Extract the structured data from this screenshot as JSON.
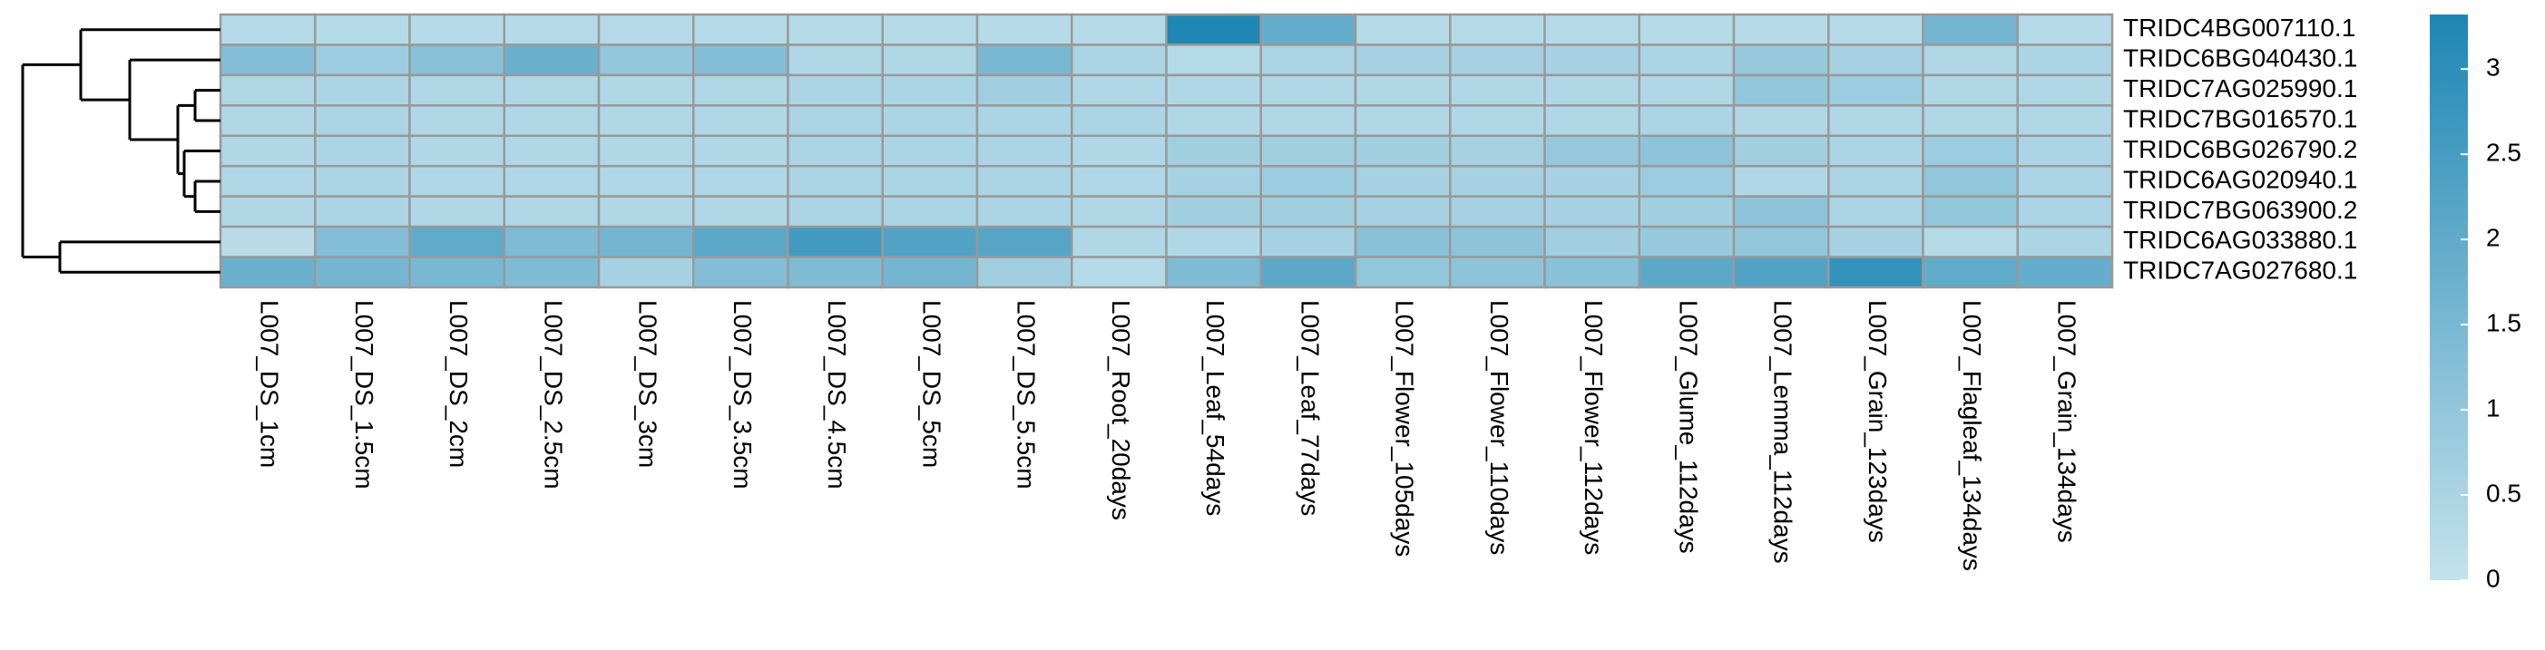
{
  "chart_data": {
    "type": "heatmap",
    "categories": [
      "L007_DS_1cm",
      "L007_DS_1.5cm",
      "L007_DS_2cm",
      "L007_DS_2.5cm",
      "L007_DS_3cm",
      "L007_DS_3.5cm",
      "L007_DS_4.5cm",
      "L007_DS_5cm",
      "L007_DS_5.5cm",
      "L007_Root_20days",
      "L007_Leaf_54days",
      "L007_Leaf_77days",
      "L007_Flower_105days",
      "L007_Flower_110days",
      "L007_Flower_112days",
      "L007_Glume_112days",
      "L007_Lemma_112days",
      "L007_Grain_123days",
      "L007_Flagleaf_134days",
      "L007_Grain_134days"
    ],
    "rows": [
      "TRIDC4BG007110.1",
      "TRIDC6BG040430.1",
      "TRIDC7AG025990.1",
      "TRIDC7BG016570.1",
      "TRIDC6BG026790.2",
      "TRIDC6AG020940.1",
      "TRIDC7BG063900.2",
      "TRIDC6AG033880.1",
      "TRIDC7AG027680.1"
    ],
    "values": [
      [
        0.3,
        0.3,
        0.3,
        0.3,
        0.3,
        0.3,
        0.3,
        0.3,
        0.3,
        0.3,
        3.3,
        1.9,
        0.3,
        0.3,
        0.3,
        0.3,
        0.3,
        0.3,
        1.6,
        0.3
      ],
      [
        1.3,
        0.8,
        1.2,
        1.8,
        1.0,
        1.3,
        0.4,
        0.4,
        1.5,
        0.5,
        0.3,
        0.5,
        0.6,
        0.6,
        0.6,
        0.5,
        0.9,
        0.6,
        0.4,
        0.5
      ],
      [
        0.4,
        0.5,
        0.4,
        0.4,
        0.4,
        0.4,
        0.5,
        0.5,
        0.7,
        0.4,
        0.4,
        0.4,
        0.4,
        0.4,
        0.4,
        0.4,
        1.0,
        0.8,
        0.4,
        0.4
      ],
      [
        0.4,
        0.5,
        0.4,
        0.4,
        0.4,
        0.4,
        0.5,
        0.5,
        0.5,
        0.5,
        0.4,
        0.4,
        0.4,
        0.4,
        0.4,
        0.5,
        0.4,
        0.4,
        0.4,
        0.4
      ],
      [
        0.4,
        0.5,
        0.4,
        0.4,
        0.4,
        0.4,
        0.5,
        0.5,
        0.5,
        0.4,
        0.7,
        0.7,
        0.7,
        0.6,
        0.9,
        1.1,
        0.7,
        0.5,
        0.8,
        0.5
      ],
      [
        0.4,
        0.5,
        0.4,
        0.4,
        0.4,
        0.4,
        0.5,
        0.5,
        0.5,
        0.4,
        0.6,
        0.8,
        0.6,
        0.6,
        0.6,
        0.8,
        0.4,
        0.5,
        1.0,
        0.5
      ],
      [
        0.4,
        0.5,
        0.4,
        0.4,
        0.4,
        0.4,
        0.5,
        0.5,
        0.5,
        0.4,
        0.7,
        0.7,
        0.6,
        0.6,
        0.6,
        0.7,
        1.1,
        0.5,
        1.0,
        0.5
      ],
      [
        0.2,
        1.3,
        2.0,
        1.4,
        1.6,
        2.1,
        2.6,
        2.3,
        2.2,
        0.4,
        0.4,
        0.6,
        1.2,
        1.1,
        0.7,
        0.9,
        1.0,
        0.6,
        0.3,
        0.5
      ],
      [
        1.8,
        1.6,
        1.5,
        1.4,
        0.6,
        1.3,
        1.4,
        1.6,
        0.7,
        0.3,
        1.4,
        2.1,
        1.0,
        1.1,
        1.2,
        2.1,
        2.3,
        2.9,
        2.0,
        1.9
      ]
    ],
    "colorscale": [
      "#c4e2ec",
      "#1e86b4"
    ],
    "zlim": [
      0,
      3.32
    ],
    "zticks": [
      0,
      0.5,
      1,
      1.5,
      2,
      2.5,
      3
    ]
  }
}
